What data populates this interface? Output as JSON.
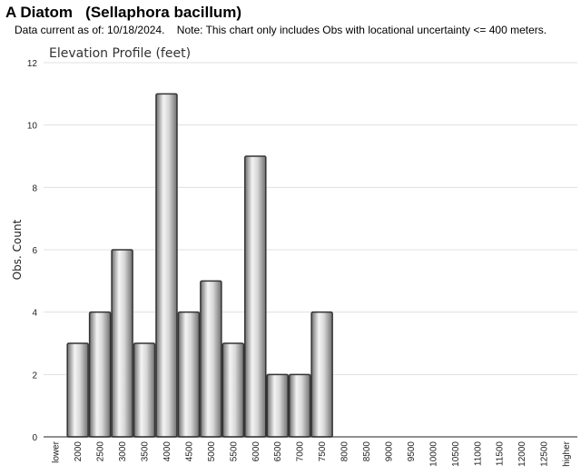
{
  "page": {
    "title": "A Diatom   (Sellaphora bacillum)",
    "subtitle": "Data current as of: 10/18/2024.    Note: This chart only includes Obs with locational uncertainty <= 400 meters."
  },
  "chart_data": {
    "type": "bar",
    "title": "Elevation Profile (feet)",
    "xlabel": "",
    "ylabel": "Obs. Count",
    "ylim": [
      0,
      12
    ],
    "yticks": [
      0,
      2,
      4,
      6,
      8,
      10,
      12
    ],
    "categories": [
      "lower",
      "2000",
      "2500",
      "3000",
      "3500",
      "4000",
      "4500",
      "5000",
      "5500",
      "6000",
      "6500",
      "7000",
      "7500",
      "8000",
      "8500",
      "9000",
      "9500",
      "10000",
      "10500",
      "11000",
      "11500",
      "12000",
      "12500",
      "higher"
    ],
    "values": [
      0,
      3,
      4,
      6,
      3,
      11,
      4,
      5,
      3,
      9,
      2,
      2,
      4,
      0,
      0,
      0,
      0,
      0,
      0,
      0,
      0,
      0,
      0,
      0
    ],
    "grid": true,
    "colors": {
      "bar_edge": "#333333",
      "bar_light": "#f2f2f2",
      "bar_dark": "#7a7a7a",
      "grid": "#e0e0e0"
    }
  }
}
